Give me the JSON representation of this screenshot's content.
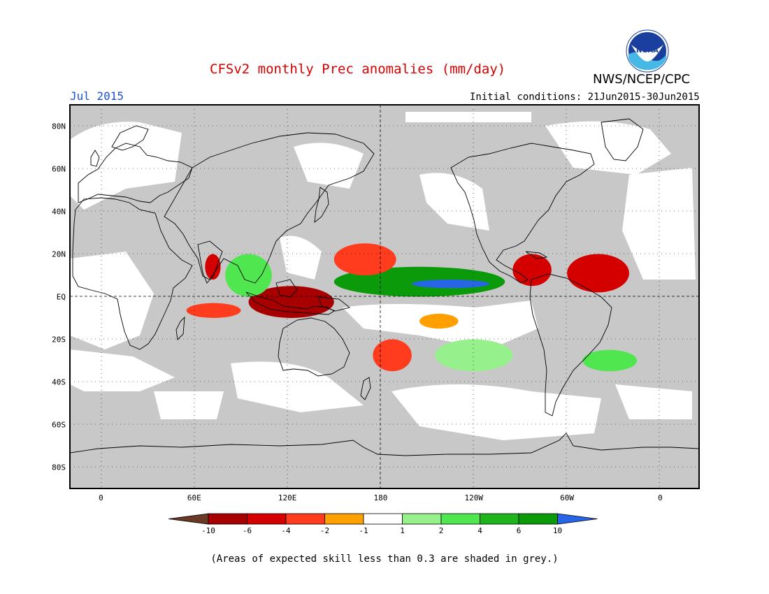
{
  "title": "CFSv2 monthly Prec anomalies (mm/day)",
  "month": "Jul 2015",
  "initial_conditions": "Initial conditions: 21Jun2015-30Jun2015",
  "agency": "NWS/NCEP/CPC",
  "logo_text": "NOAA",
  "footnote": "(Areas of expected skill less than 0.3 are shaded in grey.)",
  "colors": {
    "grey": "#c8c8c8",
    "white": "#ffffff",
    "neg10": "#6b3a26",
    "neg6": "#a80000",
    "neg4": "#d40000",
    "neg2": "#ff3c1e",
    "neg1": "#ffa000",
    "pos1": "#ffffff",
    "pos2": "#96f08c",
    "pos4": "#50e650",
    "pos6": "#1eb41e",
    "pos10": "#0a9a0a",
    "max": "#2864e6"
  },
  "map": {
    "lat_labels": [
      "80N",
      "60N",
      "40N",
      "20N",
      "EQ",
      "20S",
      "40S",
      "60S",
      "80S"
    ],
    "lon_labels": [
      "0",
      "60E",
      "120E",
      "180",
      "120W",
      "60W",
      "0"
    ]
  },
  "colorbar": {
    "labels": [
      "-10",
      "-6",
      "-4",
      "-2",
      "-1",
      "1",
      "2",
      "4",
      "6",
      "10"
    ]
  },
  "anomalies": [
    {
      "name": "west-pacific-itcz-wet",
      "sign": "positive",
      "class": "pos10",
      "lon": [
        150,
        260
      ],
      "lat": [
        0,
        14
      ]
    },
    {
      "name": "central-pacific-wet-core",
      "sign": "positive",
      "class": "max",
      "lon": [
        200,
        250
      ],
      "lat": [
        4,
        8
      ]
    },
    {
      "name": "maritime-continent-dry",
      "sign": "negative",
      "class": "neg6",
      "lon": [
        95,
        150
      ],
      "lat": [
        -10,
        5
      ]
    },
    {
      "name": "nw-pacific-dry",
      "sign": "negative",
      "class": "neg2",
      "lon": [
        150,
        190
      ],
      "lat": [
        10,
        25
      ]
    },
    {
      "name": "south-pacific-dry",
      "sign": "negative",
      "class": "neg2",
      "lon": [
        175,
        200
      ],
      "lat": [
        -35,
        -20
      ]
    },
    {
      "name": "central-america-dry",
      "sign": "negative",
      "class": "neg4",
      "lon": [
        265,
        290
      ],
      "lat": [
        5,
        20
      ]
    },
    {
      "name": "atlantic-itcz-dry",
      "sign": "negative",
      "class": "neg4",
      "lon": [
        300,
        340
      ],
      "lat": [
        2,
        20
      ]
    },
    {
      "name": "arabian-sea-dry",
      "sign": "negative",
      "class": "neg4",
      "lon": [
        67,
        77
      ],
      "lat": [
        8,
        20
      ]
    },
    {
      "name": "indian-ocean-dry",
      "sign": "negative",
      "class": "neg2",
      "lon": [
        55,
        90
      ],
      "lat": [
        -10,
        -3
      ]
    },
    {
      "name": "southern-brazil-wet",
      "sign": "positive",
      "class": "pos4",
      "lon": [
        310,
        345
      ],
      "lat": [
        -35,
        -25
      ]
    },
    {
      "name": "south-pacific-convergence-wet",
      "sign": "positive",
      "class": "pos2",
      "lon": [
        215,
        265
      ],
      "lat": [
        -35,
        -20
      ]
    },
    {
      "name": "bay-of-bengal-wet",
      "sign": "positive",
      "class": "pos4",
      "lon": [
        80,
        110
      ],
      "lat": [
        0,
        20
      ]
    },
    {
      "name": "east-pacific-dry",
      "sign": "negative",
      "class": "neg1",
      "lon": [
        205,
        230
      ],
      "lat": [
        -15,
        -8
      ]
    }
  ]
}
